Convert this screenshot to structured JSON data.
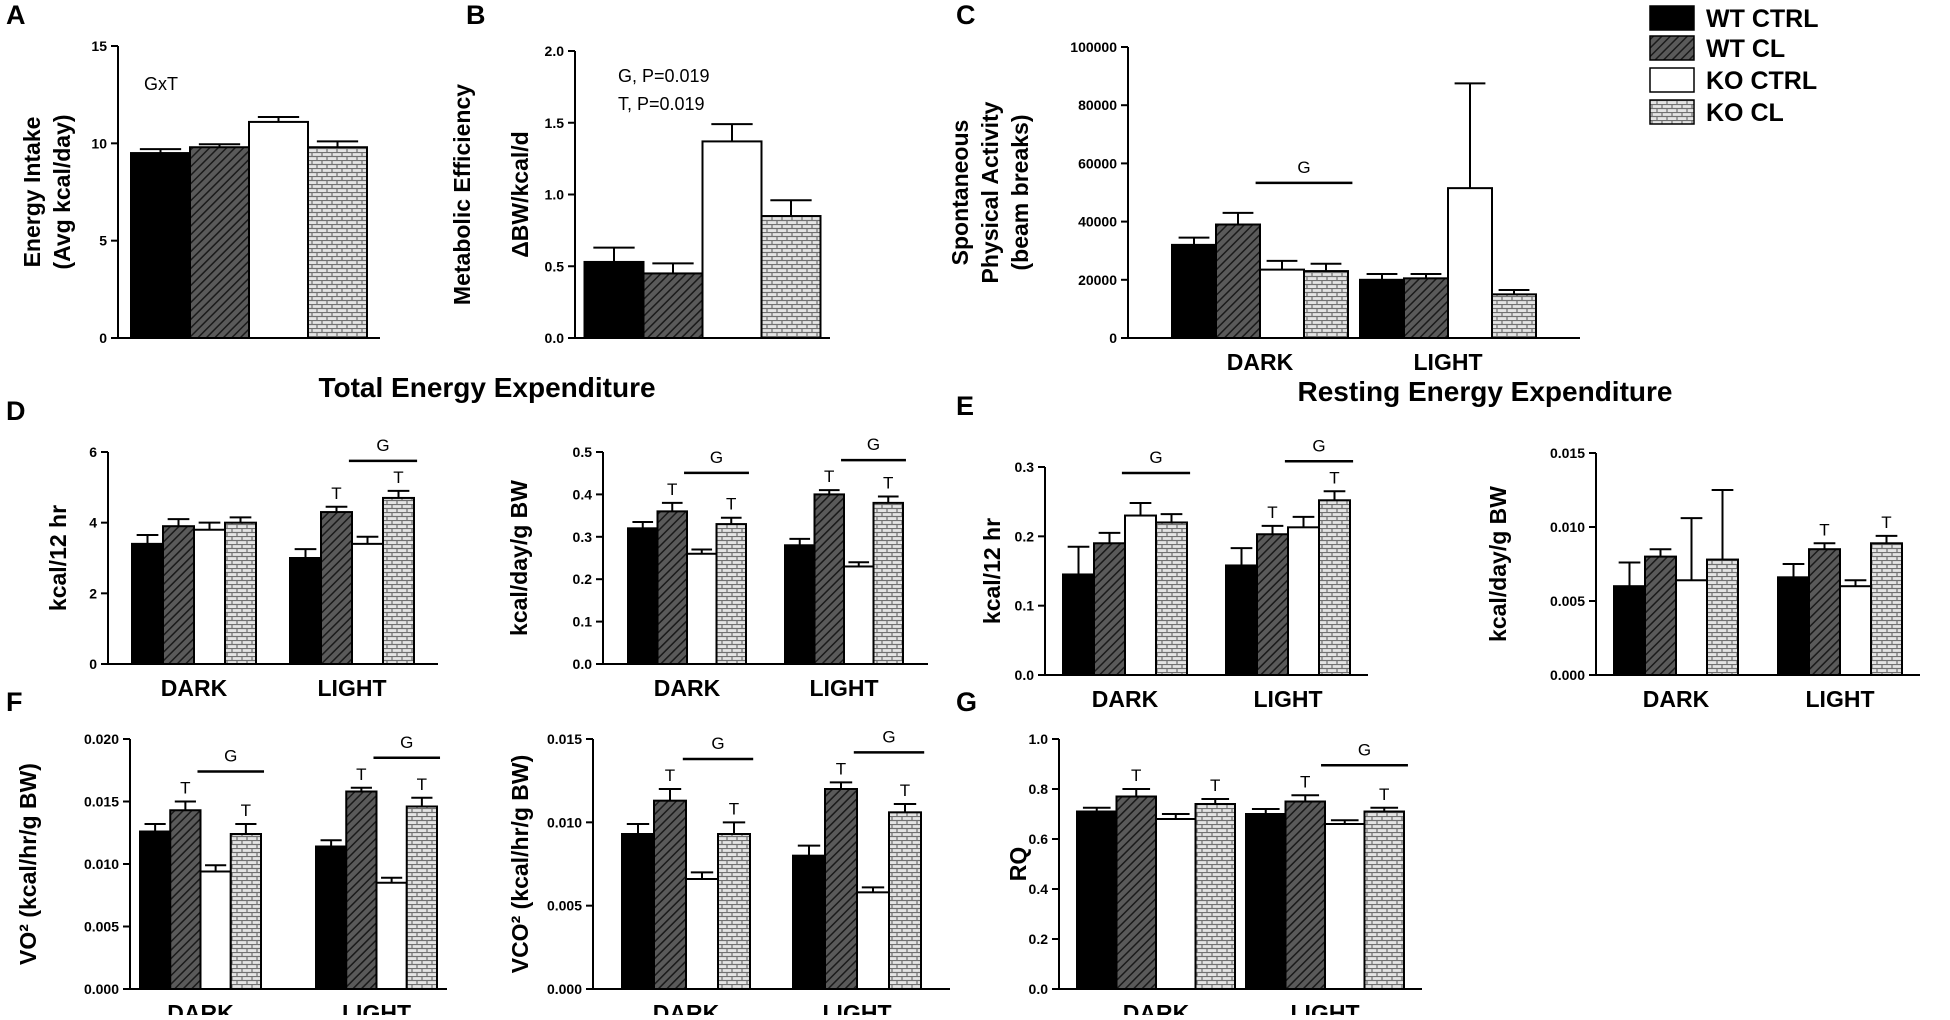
{
  "colors": {
    "WT CTRL": "#000000",
    "WT CL": "#4a4a4a",
    "KO CTRL": "#ffffff",
    "KO CL": "#d8d8d8"
  },
  "legend": [
    "WT CTRL",
    "WT CL",
    "KO CTRL",
    "KO CL"
  ],
  "sections": {
    "total": "Total Energy Expenditure",
    "resting": "Resting Energy Expenditure"
  },
  "chart_data": [
    {
      "id": "A",
      "letter": "A",
      "type": "bar",
      "ylabel": [
        "Energy Intake",
        "(Avg kcal/day)"
      ],
      "ylim": [
        0,
        15
      ],
      "ticks": [
        "0",
        "5",
        "10",
        "15"
      ],
      "categories": [
        ""
      ],
      "annotation": [
        "GxT"
      ],
      "series": [
        {
          "name": "WT CTRL",
          "values": [
            9.5
          ],
          "errors": [
            0.2
          ]
        },
        {
          "name": "WT CL",
          "values": [
            9.8
          ],
          "errors": [
            0.15
          ]
        },
        {
          "name": "KO CTRL",
          "values": [
            11.1
          ],
          "errors": [
            0.25
          ]
        },
        {
          "name": "KO CL",
          "values": [
            9.8
          ],
          "errors": [
            0.3
          ]
        }
      ],
      "sig": []
    },
    {
      "id": "B",
      "letter": "B",
      "type": "bar",
      "ylabel": [
        "Metabolic Efficiency",
        "ΔBW/kcal/d"
      ],
      "ylim": [
        0,
        2.0
      ],
      "ticks": [
        "0.0",
        "0.5",
        "1.0",
        "1.5",
        "2.0"
      ],
      "categories": [
        ""
      ],
      "annotation": [
        "G, P=0.019",
        "T, P=0.019"
      ],
      "series": [
        {
          "name": "WT CTRL",
          "values": [
            0.53
          ],
          "errors": [
            0.1
          ]
        },
        {
          "name": "WT CL",
          "values": [
            0.45
          ],
          "errors": [
            0.07
          ]
        },
        {
          "name": "KO CTRL",
          "values": [
            1.37
          ],
          "errors": [
            0.12
          ]
        },
        {
          "name": "KO CL",
          "values": [
            0.85
          ],
          "errors": [
            0.11
          ]
        }
      ],
      "sig": []
    },
    {
      "id": "C",
      "letter": "C",
      "type": "bar",
      "ylabel": [
        "Spontaneous",
        "Physical Activity",
        "(beam breaks)"
      ],
      "ylim": [
        0,
        100000
      ],
      "ticks": [
        "0",
        "20000",
        "40000",
        "60000",
        "80000",
        "100000"
      ],
      "categories": [
        "DARK",
        "LIGHT"
      ],
      "annotation": [],
      "series": [
        {
          "name": "WT CTRL",
          "values": [
            32000,
            20000
          ],
          "errors": [
            2500,
            2000
          ]
        },
        {
          "name": "WT CL",
          "values": [
            39000,
            20500
          ],
          "errors": [
            4000,
            1500
          ]
        },
        {
          "name": "KO CTRL",
          "values": [
            23500,
            51500
          ],
          "errors": [
            3000,
            36000
          ]
        },
        {
          "name": "KO CL",
          "values": [
            23000,
            15000
          ],
          "errors": [
            2500,
            1500
          ]
        }
      ],
      "sig": [
        {
          "cat": 0,
          "from": 2,
          "to": 3,
          "label": "G"
        }
      ]
    },
    {
      "id": "D1",
      "letter": "D",
      "type": "bar",
      "ylabel": [
        "kcal/12 hr"
      ],
      "ylim": [
        0,
        6
      ],
      "ticks": [
        "0",
        "2",
        "4",
        "6"
      ],
      "categories": [
        "DARK",
        "LIGHT"
      ],
      "annotation": [],
      "series": [
        {
          "name": "WT CTRL",
          "values": [
            3.4,
            3.0
          ],
          "errors": [
            0.25,
            0.25
          ]
        },
        {
          "name": "WT CL",
          "values": [
            3.9,
            4.3
          ],
          "errors": [
            0.2,
            0.15
          ]
        },
        {
          "name": "KO CTRL",
          "values": [
            3.8,
            3.4
          ],
          "errors": [
            0.2,
            0.2
          ]
        },
        {
          "name": "KO CL",
          "values": [
            4.0,
            4.7
          ],
          "errors": [
            0.15,
            0.2
          ]
        }
      ],
      "sig": [
        {
          "cat": 1,
          "from": 2,
          "to": 3,
          "label": "G"
        },
        {
          "cat": 1,
          "bar": 1,
          "label": "T"
        },
        {
          "cat": 1,
          "bar": 3,
          "label": "T"
        }
      ]
    },
    {
      "id": "D2",
      "letter": "",
      "type": "bar",
      "ylabel": [
        "kcal/day/g BW"
      ],
      "ylim": [
        0,
        0.5
      ],
      "ticks": [
        "0.0",
        "0.1",
        "0.2",
        "0.3",
        "0.4",
        "0.5"
      ],
      "categories": [
        "DARK",
        "LIGHT"
      ],
      "annotation": [],
      "series": [
        {
          "name": "WT CTRL",
          "values": [
            0.32,
            0.28
          ],
          "errors": [
            0.015,
            0.015
          ]
        },
        {
          "name": "WT CL",
          "values": [
            0.36,
            0.4
          ],
          "errors": [
            0.02,
            0.01
          ]
        },
        {
          "name": "KO CTRL",
          "values": [
            0.26,
            0.23
          ],
          "errors": [
            0.01,
            0.01
          ]
        },
        {
          "name": "KO CL",
          "values": [
            0.33,
            0.38
          ],
          "errors": [
            0.015,
            0.015
          ]
        }
      ],
      "sig": [
        {
          "cat": 0,
          "from": 2,
          "to": 3,
          "label": "G"
        },
        {
          "cat": 1,
          "from": 2,
          "to": 3,
          "label": "G"
        },
        {
          "cat": 0,
          "bar": 1,
          "label": "T"
        },
        {
          "cat": 0,
          "bar": 3,
          "label": "T"
        },
        {
          "cat": 1,
          "bar": 1,
          "label": "T"
        },
        {
          "cat": 1,
          "bar": 3,
          "label": "T"
        }
      ]
    },
    {
      "id": "E1",
      "letter": "E",
      "type": "bar",
      "ylabel": [
        "kcal/12 hr"
      ],
      "ylim": [
        0,
        0.3
      ],
      "ticks": [
        "0.0",
        "0.1",
        "0.2",
        "0.3"
      ],
      "categories": [
        "DARK",
        "LIGHT"
      ],
      "annotation": [],
      "series": [
        {
          "name": "WT CTRL",
          "values": [
            0.145,
            0.158
          ],
          "errors": [
            0.04,
            0.025
          ]
        },
        {
          "name": "WT CL",
          "values": [
            0.19,
            0.203
          ],
          "errors": [
            0.015,
            0.012
          ]
        },
        {
          "name": "KO CTRL",
          "values": [
            0.23,
            0.213
          ],
          "errors": [
            0.018,
            0.015
          ]
        },
        {
          "name": "KO CL",
          "values": [
            0.22,
            0.252
          ],
          "errors": [
            0.012,
            0.013
          ]
        }
      ],
      "sig": [
        {
          "cat": 0,
          "from": 2,
          "to": 3,
          "label": "G"
        },
        {
          "cat": 1,
          "from": 2,
          "to": 3,
          "label": "G"
        },
        {
          "cat": 1,
          "bar": 1,
          "label": "T"
        },
        {
          "cat": 1,
          "bar": 3,
          "label": "T"
        }
      ]
    },
    {
      "id": "E2",
      "letter": "",
      "type": "bar",
      "ylabel": [
        "kcal/day/g BW"
      ],
      "ylim": [
        0,
        0.015
      ],
      "ticks": [
        "0.000",
        "0.005",
        "0.010",
        "0.015"
      ],
      "categories": [
        "DARK",
        "LIGHT"
      ],
      "annotation": [],
      "series": [
        {
          "name": "WT CTRL",
          "values": [
            0.006,
            0.0066
          ],
          "errors": [
            0.0016,
            0.0009
          ]
        },
        {
          "name": "WT CL",
          "values": [
            0.008,
            0.0085
          ],
          "errors": [
            0.0005,
            0.0004
          ]
        },
        {
          "name": "KO CTRL",
          "values": [
            0.0064,
            0.006
          ],
          "errors": [
            0.0042,
            0.0004
          ]
        },
        {
          "name": "KO CL",
          "values": [
            0.0078,
            0.0089
          ],
          "errors": [
            0.0047,
            0.0005
          ]
        }
      ],
      "sig": [
        {
          "cat": 1,
          "bar": 1,
          "label": "T"
        },
        {
          "cat": 1,
          "bar": 3,
          "label": "T"
        }
      ]
    },
    {
      "id": "F1",
      "letter": "F",
      "type": "bar",
      "ylabel": [
        "VO² (kcal/hr/g BW)"
      ],
      "ylim": [
        0,
        0.02
      ],
      "ticks": [
        "0.000",
        "0.005",
        "0.010",
        "0.015",
        "0.020"
      ],
      "categories": [
        "DARK",
        "LIGHT"
      ],
      "annotation": [],
      "series": [
        {
          "name": "WT CTRL",
          "values": [
            0.0126,
            0.0114
          ],
          "errors": [
            0.0006,
            0.0005
          ]
        },
        {
          "name": "WT CL",
          "values": [
            0.0143,
            0.0158
          ],
          "errors": [
            0.0007,
            0.0003
          ]
        },
        {
          "name": "KO CTRL",
          "values": [
            0.0094,
            0.0085
          ],
          "errors": [
            0.0005,
            0.0004
          ]
        },
        {
          "name": "KO CL",
          "values": [
            0.0124,
            0.0146
          ],
          "errors": [
            0.0008,
            0.0007
          ]
        }
      ],
      "sig": [
        {
          "cat": 0,
          "from": 2,
          "to": 3,
          "label": "G"
        },
        {
          "cat": 1,
          "from": 2,
          "to": 3,
          "label": "G"
        },
        {
          "cat": 0,
          "bar": 1,
          "label": "T"
        },
        {
          "cat": 0,
          "bar": 3,
          "label": "T"
        },
        {
          "cat": 1,
          "bar": 1,
          "label": "T"
        },
        {
          "cat": 1,
          "bar": 3,
          "label": "T"
        }
      ]
    },
    {
      "id": "F2",
      "letter": "",
      "type": "bar",
      "ylabel": [
        "VCO² (kcal/hr/g BW)"
      ],
      "ylim": [
        0,
        0.015
      ],
      "ticks": [
        "0.000",
        "0.005",
        "0.010",
        "0.015"
      ],
      "categories": [
        "DARK",
        "LIGHT"
      ],
      "annotation": [],
      "series": [
        {
          "name": "WT CTRL",
          "values": [
            0.0093,
            0.008
          ],
          "errors": [
            0.0006,
            0.0006
          ]
        },
        {
          "name": "WT CL",
          "values": [
            0.0113,
            0.012
          ],
          "errors": [
            0.0007,
            0.0004
          ]
        },
        {
          "name": "KO CTRL",
          "values": [
            0.0066,
            0.0058
          ],
          "errors": [
            0.0004,
            0.0003
          ]
        },
        {
          "name": "KO CL",
          "values": [
            0.0093,
            0.0106
          ],
          "errors": [
            0.0007,
            0.0005
          ]
        }
      ],
      "sig": [
        {
          "cat": 0,
          "from": 2,
          "to": 3,
          "label": "G"
        },
        {
          "cat": 1,
          "from": 2,
          "to": 3,
          "label": "G"
        },
        {
          "cat": 0,
          "bar": 1,
          "label": "T"
        },
        {
          "cat": 0,
          "bar": 3,
          "label": "T"
        },
        {
          "cat": 1,
          "bar": 1,
          "label": "T"
        },
        {
          "cat": 1,
          "bar": 3,
          "label": "T"
        }
      ]
    },
    {
      "id": "G",
      "letter": "G",
      "type": "bar",
      "ylabel": [
        "RQ"
      ],
      "ylim": [
        0,
        1.0
      ],
      "ticks": [
        "0.0",
        "0.2",
        "0.4",
        "0.6",
        "0.8",
        "1.0"
      ],
      "categories": [
        "DARK",
        "LIGHT"
      ],
      "annotation": [],
      "series": [
        {
          "name": "WT CTRL",
          "values": [
            0.71,
            0.7
          ],
          "errors": [
            0.015,
            0.02
          ]
        },
        {
          "name": "WT CL",
          "values": [
            0.77,
            0.75
          ],
          "errors": [
            0.03,
            0.025
          ]
        },
        {
          "name": "KO CTRL",
          "values": [
            0.68,
            0.66
          ],
          "errors": [
            0.02,
            0.015
          ]
        },
        {
          "name": "KO CL",
          "values": [
            0.74,
            0.71
          ],
          "errors": [
            0.02,
            0.015
          ]
        }
      ],
      "sig": [
        {
          "cat": 1,
          "from": 2,
          "to": 3,
          "label": "G"
        },
        {
          "cat": 0,
          "bar": 1,
          "label": "T"
        },
        {
          "cat": 0,
          "bar": 3,
          "label": "T"
        },
        {
          "cat": 1,
          "bar": 1,
          "label": "T"
        },
        {
          "cat": 1,
          "bar": 3,
          "label": "T"
        }
      ]
    }
  ]
}
